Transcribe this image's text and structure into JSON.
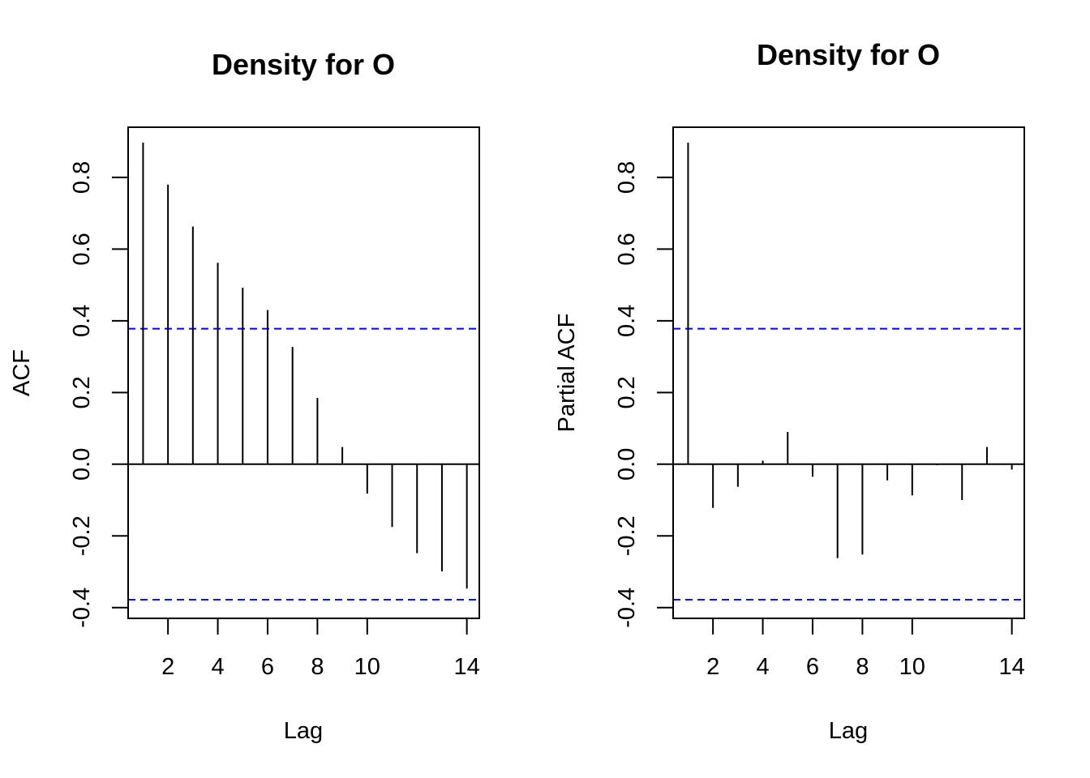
{
  "chart_data": [
    {
      "type": "bar",
      "subtype": "acf",
      "title": "Density for O",
      "xlabel": "Lag",
      "ylabel": "ACF",
      "x": [
        1,
        2,
        3,
        4,
        5,
        6,
        7,
        8,
        9,
        10,
        11,
        12,
        13,
        14
      ],
      "values": [
        0.897,
        0.78,
        0.663,
        0.562,
        0.492,
        0.43,
        0.327,
        0.185,
        0.048,
        -0.082,
        -0.175,
        -0.248,
        -0.299,
        -0.347
      ],
      "xlim": [
        0.4,
        14.5
      ],
      "ylim": [
        -0.43,
        0.94
      ],
      "xticks": [
        2,
        4,
        6,
        8,
        10,
        14
      ],
      "yticks": [
        -0.4,
        -0.2,
        0.0,
        0.2,
        0.4,
        0.6,
        0.8
      ],
      "ytick_labels": [
        "-0.4",
        "-0.2",
        "0.0",
        "0.2",
        "0.4",
        "0.6",
        "0.8"
      ],
      "confidence_band": [
        -0.378,
        0.378
      ],
      "band_color": "#0000ff",
      "grid": false
    },
    {
      "type": "bar",
      "subtype": "pacf",
      "title": "Density for O",
      "xlabel": "Lag",
      "ylabel": "Partial ACF",
      "x": [
        1,
        2,
        3,
        4,
        5,
        6,
        7,
        8,
        9,
        10,
        11,
        12,
        13,
        14
      ],
      "values": [
        0.897,
        -0.122,
        -0.063,
        0.01,
        0.09,
        -0.035,
        -0.262,
        -0.252,
        -0.045,
        -0.087,
        -0.003,
        -0.1,
        0.048,
        -0.015
      ],
      "xlim": [
        0.4,
        14.5
      ],
      "ylim": [
        -0.43,
        0.94
      ],
      "xticks": [
        2,
        4,
        6,
        8,
        10,
        14
      ],
      "yticks": [
        -0.4,
        -0.2,
        0.0,
        0.2,
        0.4,
        0.6,
        0.8
      ],
      "ytick_labels": [
        "-0.4",
        "-0.2",
        "0.0",
        "0.2",
        "0.4",
        "0.6",
        "0.8"
      ],
      "confidence_band": [
        -0.378,
        0.378
      ],
      "band_color": "#0000ff",
      "grid": false
    }
  ]
}
